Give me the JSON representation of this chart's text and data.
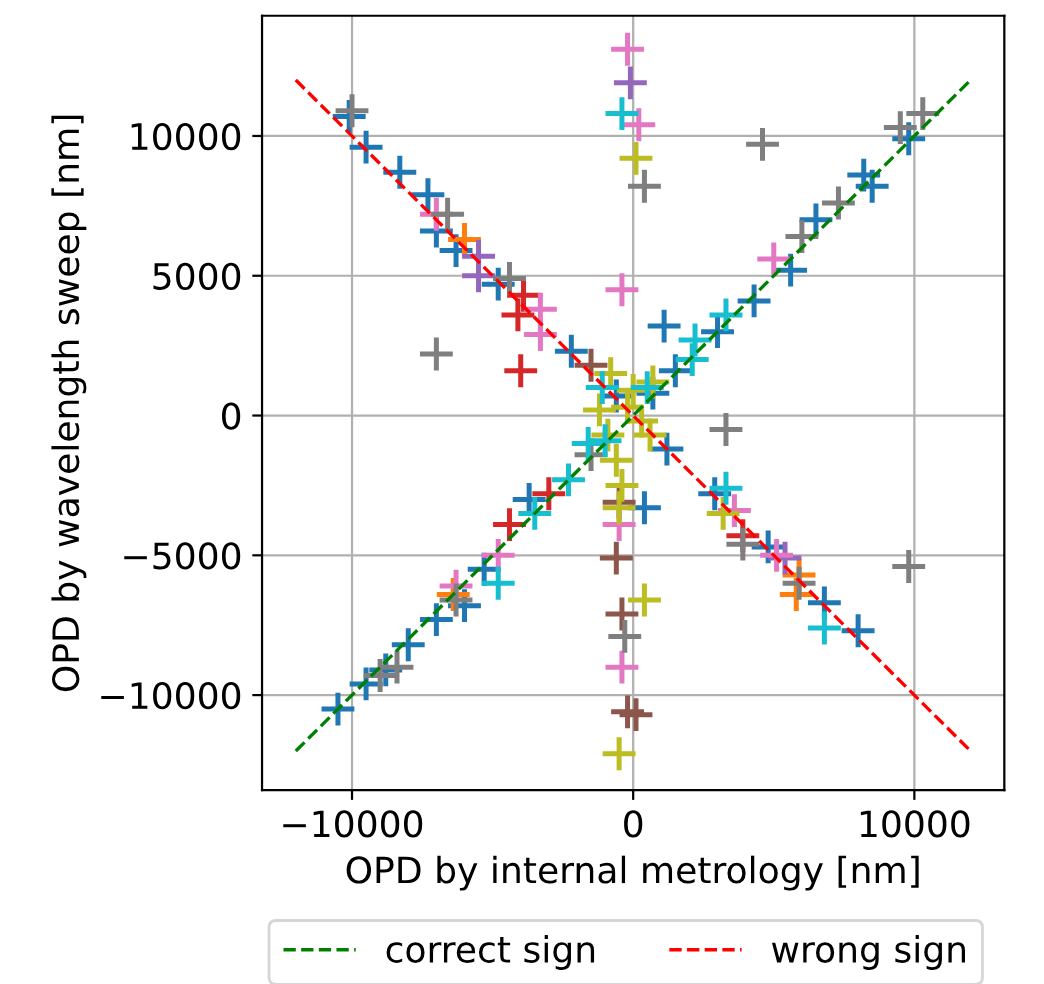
{
  "chart_data": {
    "type": "scatter",
    "xlabel": "OPD by internal metrology [nm]",
    "ylabel": "OPD by wavelength sweep [nm]",
    "xlim": [
      -13200,
      13200
    ],
    "ylim": [
      -13400,
      14300
    ],
    "xticks": [
      {
        "value": -10000,
        "label": "−10000"
      },
      0,
      10000
    ],
    "yticks": [
      {
        "value": -10000,
        "label": "−10000"
      },
      {
        "value": -5000,
        "label": "−5000"
      },
      0,
      5000,
      10000
    ],
    "grid": true,
    "legend": "bottom",
    "marker": "cross",
    "series": [
      {
        "color": "#1f77b4",
        "x": [
          -10100,
          -9500,
          -8300,
          -7300,
          -7000,
          -6300,
          -4800,
          -2200,
          -600,
          9800,
          8200,
          8500,
          6500,
          5600,
          4300,
          3000,
          1100,
          1500,
          700,
          -10500,
          -9500,
          -8800,
          -8000,
          -7000,
          -6000,
          -5300,
          -3700,
          400,
          2900,
          4800,
          6800,
          8000,
          1200
        ],
        "values": [
          10700,
          9600,
          8700,
          7900,
          6600,
          5900,
          4700,
          2300,
          700,
          9900,
          8600,
          8200,
          7000,
          5200,
          4100,
          3000,
          3200,
          1600,
          800,
          -10500,
          -9600,
          -9100,
          -8200,
          -7300,
          -6800,
          -5500,
          -3000,
          -3300,
          -2800,
          -4700,
          -6700,
          -7700,
          -1200
        ]
      },
      {
        "color": "#ff7f0e",
        "x": [
          -6000,
          -6400,
          5900,
          5800
        ],
        "values": [
          6300,
          -6400,
          -5700,
          -6400
        ]
      },
      {
        "color": "#d62728",
        "x": [
          -3900,
          -4100,
          -4000,
          -4400,
          -3000,
          3900
        ],
        "values": [
          4300,
          3600,
          1600,
          -3900,
          -2800,
          -4300
        ]
      },
      {
        "color": "#9467bd",
        "x": [
          -5500,
          -5500,
          -100,
          5400
        ],
        "values": [
          5700,
          5000,
          11900,
          -5100
        ]
      },
      {
        "color": "#8c564b",
        "x": [
          -500,
          -600,
          -400,
          100,
          -200,
          -1500
        ],
        "values": [
          -3100,
          -5100,
          -7100,
          -10700,
          -10600,
          1800
        ]
      },
      {
        "color": "#e377c2",
        "x": [
          -7000,
          -3300,
          -3300,
          -400,
          -200,
          200,
          -6300,
          -4800,
          5100,
          3600,
          -400,
          -500,
          5000
        ],
        "values": [
          7200,
          2900,
          3800,
          4500,
          13100,
          10400,
          -6100,
          -5000,
          -5000,
          -3400,
          -9000,
          -3900,
          5600
        ]
      },
      {
        "color": "#7f7f7f",
        "x": [
          -10000,
          -6600,
          -4400,
          -7000,
          400,
          4600,
          10300,
          9500,
          7300,
          6000,
          -9000,
          -8400,
          -6300,
          3300,
          9800,
          3900,
          -300,
          -1500,
          5900
        ],
        "values": [
          10900,
          7200,
          4900,
          2200,
          8200,
          9700,
          10800,
          10300,
          7600,
          6400,
          -9300,
          -9000,
          -6600,
          -500,
          -5400,
          -4600,
          -7900,
          -1400,
          -6000
        ]
      },
      {
        "color": "#bcbd22",
        "x": [
          100,
          400,
          -500,
          -400,
          -500,
          -900,
          0,
          300,
          -800,
          700,
          -600,
          -200,
          3200,
          600,
          -1200
        ],
        "values": [
          9200,
          -6600,
          -12100,
          -2500,
          -3300,
          -700,
          900,
          -200,
          1500,
          1200,
          -1600,
          300,
          -3500,
          -700,
          200
        ]
      },
      {
        "color": "#17becf",
        "x": [
          -400,
          3300,
          2200,
          2100,
          -1600,
          6800,
          -4800,
          -3500,
          -2300,
          -1000,
          500,
          3300,
          -1100
        ],
        "values": [
          10800,
          3600,
          2700,
          2000,
          -1000,
          -7600,
          -6000,
          -3500,
          -2300,
          -900,
          1000,
          -2600,
          1000
        ]
      },
      {
        "type": "line",
        "name": "correct sign",
        "color": "#008000",
        "line_style": "dashed",
        "marker": "none",
        "x": [
          -12000,
          12000
        ],
        "values": [
          -12000,
          12000
        ]
      },
      {
        "type": "line",
        "name": "wrong sign",
        "color": "#ff0000",
        "line_style": "dashed",
        "marker": "none",
        "x": [
          -12000,
          12000
        ],
        "values": [
          12000,
          -12000
        ]
      }
    ]
  }
}
